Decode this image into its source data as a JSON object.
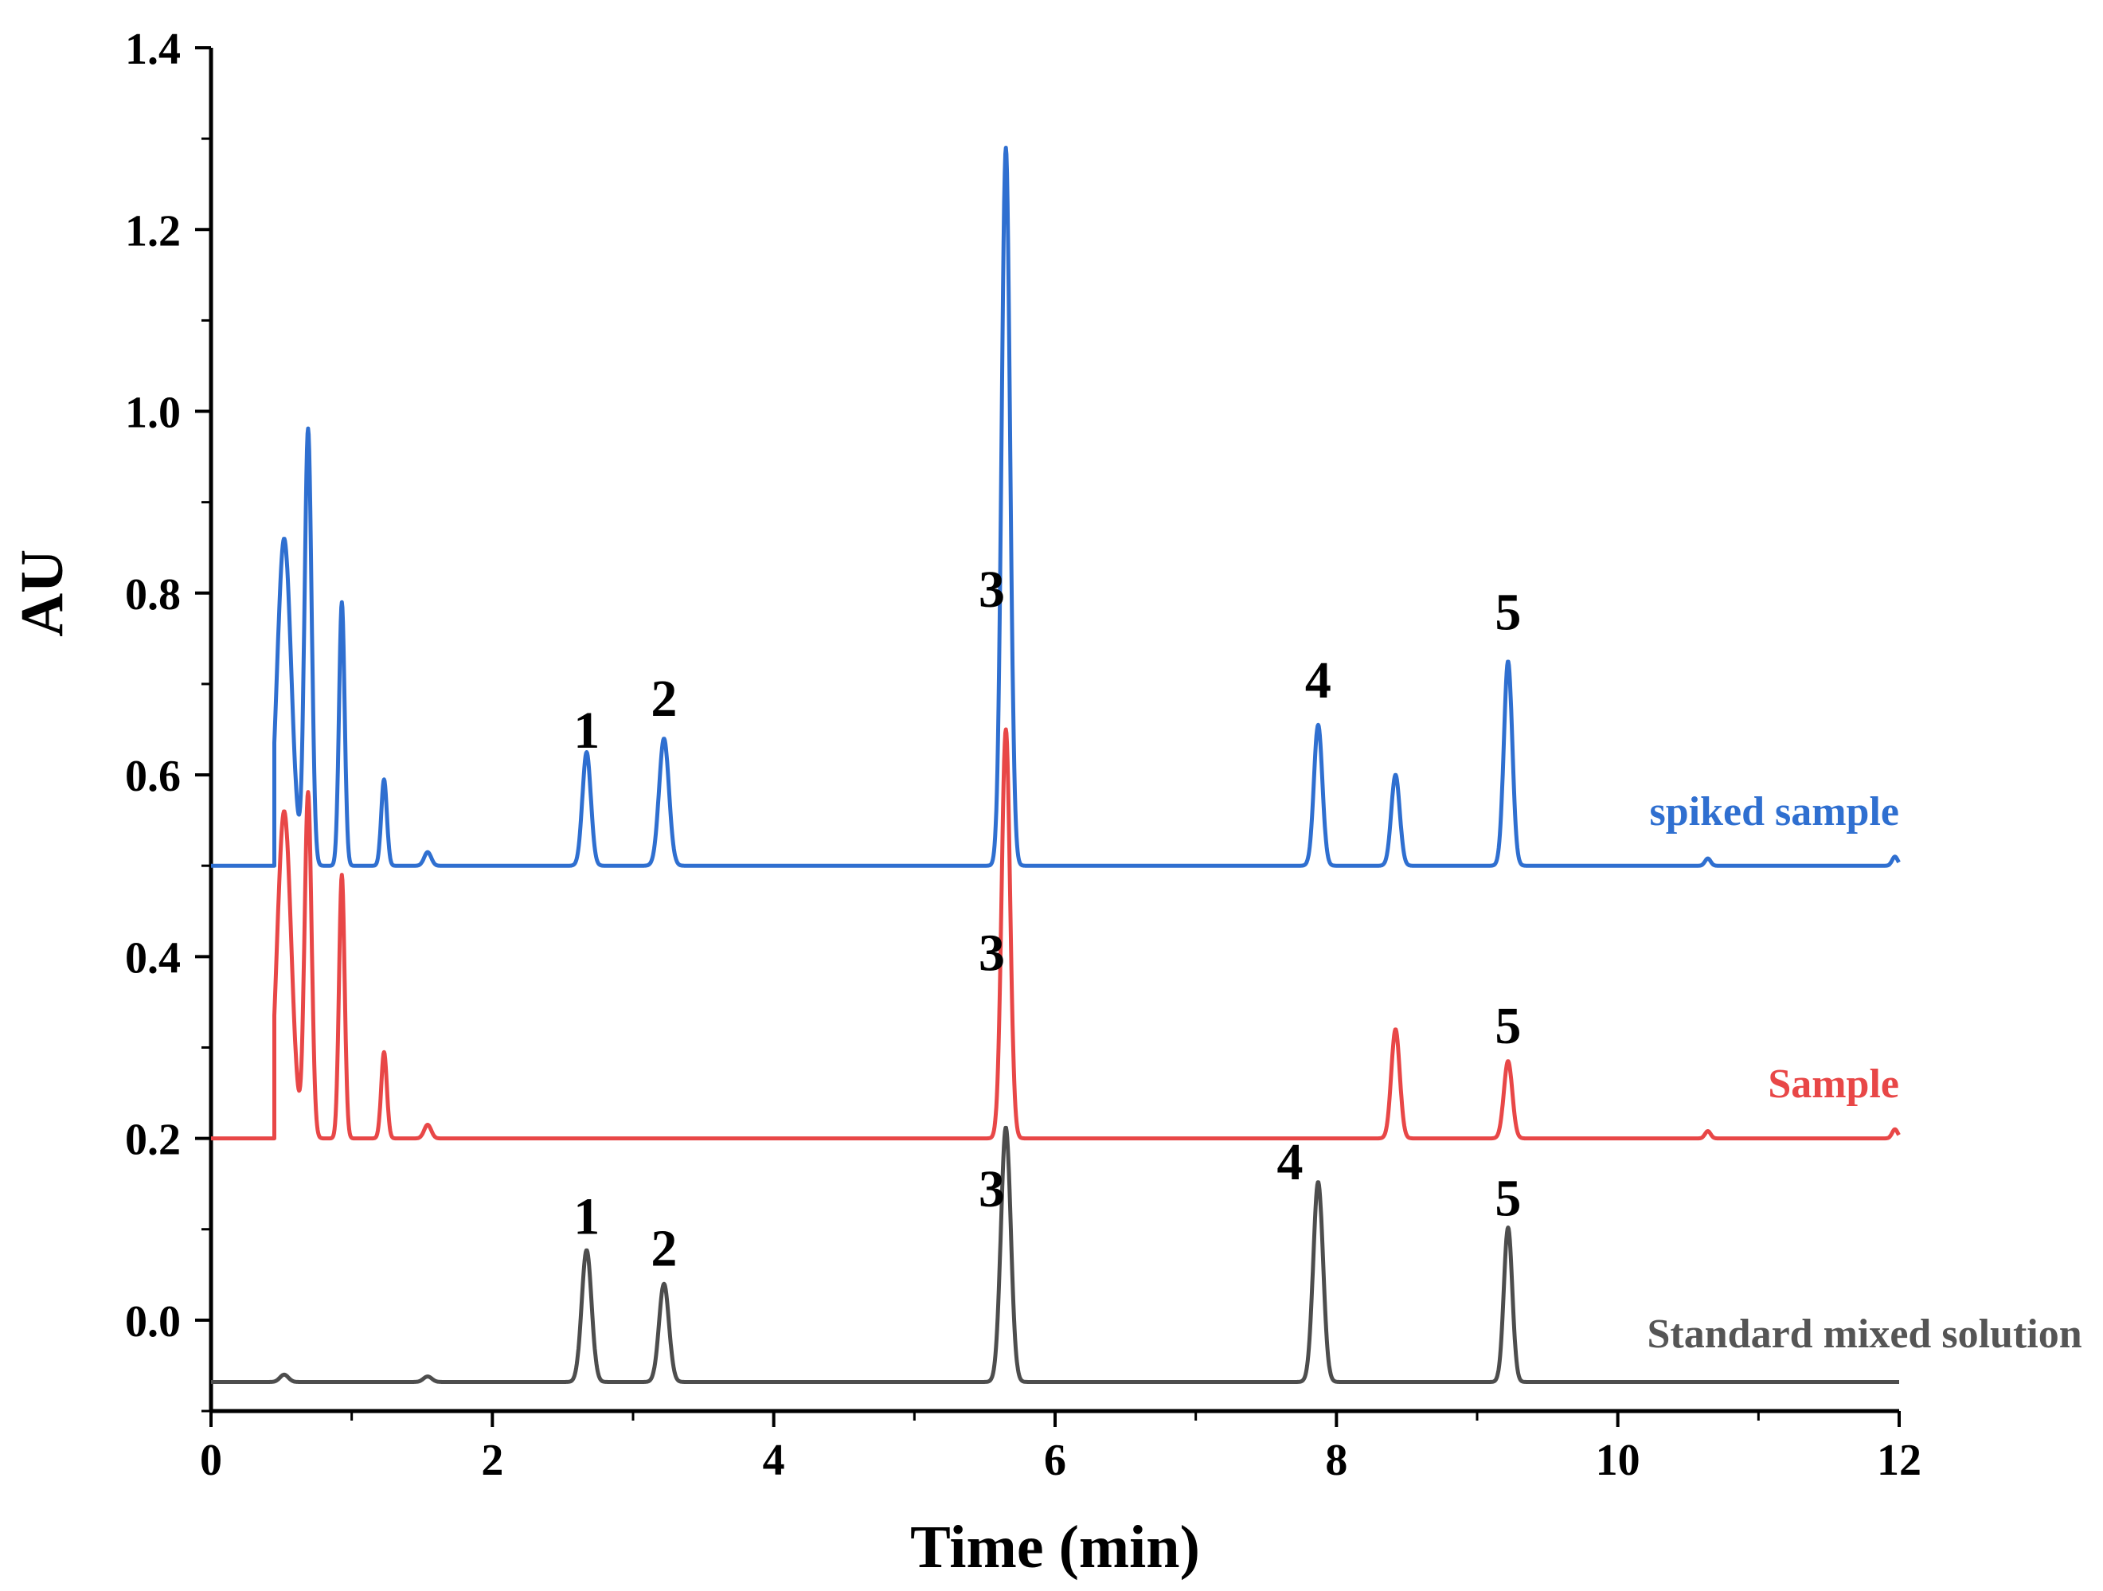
{
  "chart_data": {
    "type": "line",
    "title": "",
    "xlabel": "Time (min)",
    "ylabel": "AU",
    "xlim": [
      0,
      12
    ],
    "ylim": [
      -0.1,
      1.4
    ],
    "xticks": [
      {
        "value": 0,
        "label": "0"
      },
      {
        "value": 2,
        "label": "2"
      },
      {
        "value": 4,
        "label": "4"
      },
      {
        "value": 6,
        "label": "6"
      },
      {
        "value": 8,
        "label": "8"
      },
      {
        "value": 10,
        "label": "10"
      },
      {
        "value": 12,
        "label": "12"
      }
    ],
    "yticks": [
      {
        "value": 0.0,
        "label": "0.0"
      },
      {
        "value": 0.2,
        "label": "0.2"
      },
      {
        "value": 0.4,
        "label": "0.4"
      },
      {
        "value": 0.6,
        "label": "0.6"
      },
      {
        "value": 0.8,
        "label": "0.8"
      },
      {
        "value": 1.0,
        "label": "1.0"
      },
      {
        "value": 1.2,
        "label": "1.2"
      },
      {
        "value": 1.4,
        "label": "1.4"
      }
    ],
    "grid": false,
    "legend": "inline, right end of each trace",
    "series": [
      {
        "name": "spiked sample",
        "color": "#2f6fd0",
        "baseline": 0.5,
        "start_x": 0.45,
        "end_x": 12.0,
        "peaks": [
          {
            "x": 0.52,
            "height": 0.36,
            "width": 0.05
          },
          {
            "x": 0.69,
            "height": 0.48,
            "width": 0.025
          },
          {
            "x": 0.93,
            "height": 0.29,
            "width": 0.02
          },
          {
            "x": 1.23,
            "height": 0.095,
            "width": 0.02
          },
          {
            "x": 1.54,
            "height": 0.015,
            "width": 0.025
          },
          {
            "x": 2.67,
            "height": 0.125,
            "width": 0.03
          },
          {
            "x": 3.22,
            "height": 0.14,
            "width": 0.035
          },
          {
            "x": 5.65,
            "height": 0.79,
            "width": 0.03
          },
          {
            "x": 7.87,
            "height": 0.155,
            "width": 0.03
          },
          {
            "x": 8.42,
            "height": 0.1,
            "width": 0.03
          },
          {
            "x": 9.22,
            "height": 0.225,
            "width": 0.03
          },
          {
            "x": 10.64,
            "height": 0.008,
            "width": 0.02
          },
          {
            "x": 11.97,
            "height": 0.01,
            "width": 0.02
          }
        ]
      },
      {
        "name": "Sample",
        "color": "#e84747",
        "baseline": 0.2,
        "start_x": 0.45,
        "end_x": 12.0,
        "peaks": [
          {
            "x": 0.52,
            "height": 0.36,
            "width": 0.05
          },
          {
            "x": 0.69,
            "height": 0.38,
            "width": 0.025
          },
          {
            "x": 0.93,
            "height": 0.29,
            "width": 0.02
          },
          {
            "x": 1.23,
            "height": 0.095,
            "width": 0.02
          },
          {
            "x": 1.54,
            "height": 0.015,
            "width": 0.025
          },
          {
            "x": 5.65,
            "height": 0.45,
            "width": 0.03
          },
          {
            "x": 8.42,
            "height": 0.12,
            "width": 0.03
          },
          {
            "x": 9.22,
            "height": 0.085,
            "width": 0.03
          },
          {
            "x": 10.64,
            "height": 0.008,
            "width": 0.02
          },
          {
            "x": 11.97,
            "height": 0.01,
            "width": 0.02
          }
        ]
      },
      {
        "name": "Standard mixed solution",
        "color": "#4d4d4d",
        "baseline": -0.068,
        "start_x": 0.0,
        "end_x": 12.0,
        "peaks": [
          {
            "x": 0.52,
            "height": 0.008,
            "width": 0.03
          },
          {
            "x": 1.54,
            "height": 0.006,
            "width": 0.03
          },
          {
            "x": 2.67,
            "height": 0.145,
            "width": 0.035
          },
          {
            "x": 3.22,
            "height": 0.108,
            "width": 0.035
          },
          {
            "x": 5.65,
            "height": 0.28,
            "width": 0.035
          },
          {
            "x": 7.87,
            "height": 0.22,
            "width": 0.035
          },
          {
            "x": 9.22,
            "height": 0.17,
            "width": 0.03
          }
        ]
      }
    ],
    "annotations": [
      {
        "text": "1",
        "x": 2.67,
        "y": 0.63
      },
      {
        "text": "2",
        "x": 3.22,
        "y": 0.665
      },
      {
        "text": "3",
        "x": 5.55,
        "y": 0.785
      },
      {
        "text": "4",
        "x": 7.87,
        "y": 0.685
      },
      {
        "text": "5",
        "x": 9.22,
        "y": 0.76
      },
      {
        "text": "3",
        "x": 5.55,
        "y": 0.385
      },
      {
        "text": "5",
        "x": 9.22,
        "y": 0.305
      },
      {
        "text": "1",
        "x": 2.67,
        "y": 0.095
      },
      {
        "text": "2",
        "x": 3.22,
        "y": 0.06
      },
      {
        "text": "3",
        "x": 5.55,
        "y": 0.125
      },
      {
        "text": "4",
        "x": 7.67,
        "y": 0.155
      },
      {
        "text": "5",
        "x": 9.22,
        "y": 0.115
      }
    ],
    "series_labels": [
      {
        "text": "spiked sample",
        "x": 12.0,
        "y": 0.545,
        "color": "#2f6fd0"
      },
      {
        "text": "Sample",
        "x": 12.0,
        "y": 0.245,
        "color": "#e84747"
      },
      {
        "text": "Standard mixed solution",
        "x": 13.3,
        "y": -0.03,
        "color": "#555555"
      }
    ]
  }
}
